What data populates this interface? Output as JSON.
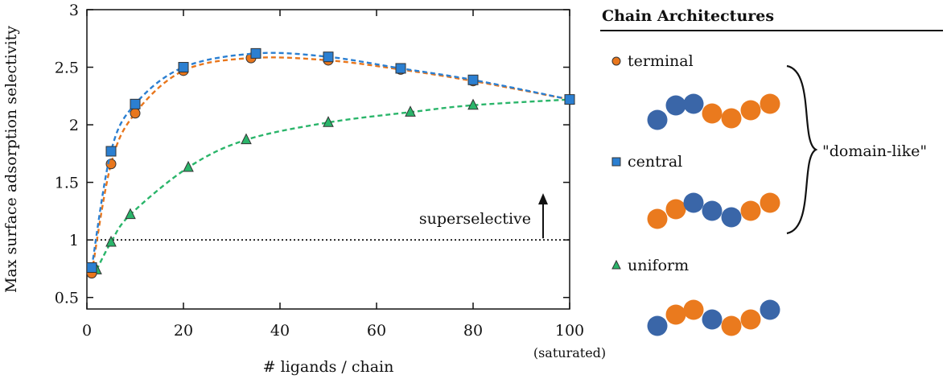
{
  "chart_data": {
    "type": "line",
    "title": "",
    "xlabel": "# ligands / chain",
    "ylabel": "Max surface adsorption selectivity",
    "xlim": [
      0,
      100
    ],
    "ylim": [
      0.4,
      3.0
    ],
    "xticks": [
      "0",
      "20",
      "40",
      "60",
      "80",
      "100"
    ],
    "yticks": [
      "0.5",
      "1",
      "1.5",
      "2",
      "2.5",
      "3"
    ],
    "x_end_note": "(saturated)",
    "threshold": {
      "y": 1,
      "label": "superselective"
    },
    "grid": false,
    "series": [
      {
        "name": "terminal",
        "color": "#e8761c",
        "marker": "circle",
        "line": "dashed",
        "x": [
          1,
          5,
          10,
          20,
          34,
          50,
          65,
          80,
          100
        ],
        "y": [
          0.71,
          1.66,
          2.1,
          2.47,
          2.58,
          2.56,
          2.48,
          2.38,
          2.22
        ]
      },
      {
        "name": "central",
        "color": "#2b7fd1",
        "marker": "square",
        "line": "dashed",
        "x": [
          1,
          5,
          10,
          20,
          35,
          50,
          65,
          80,
          100
        ],
        "y": [
          0.76,
          1.77,
          2.18,
          2.5,
          2.62,
          2.59,
          2.49,
          2.39,
          2.22
        ]
      },
      {
        "name": "uniform",
        "color": "#2ab56a",
        "marker": "triangle",
        "line": "dashed",
        "x": [
          2,
          5,
          9,
          21,
          33,
          50,
          67,
          80,
          100
        ],
        "y": [
          0.74,
          0.98,
          1.22,
          1.63,
          1.87,
          2.02,
          2.11,
          2.17,
          2.22
        ]
      }
    ]
  },
  "panel": {
    "header": "Chain Architectures",
    "bracket_label": "\"domain-like\"",
    "colors": {
      "orange": "#ea7a1e",
      "blue": "#3a66a8"
    },
    "chains": [
      {
        "name": "terminal",
        "beads": [
          "blue",
          "blue",
          "blue",
          "orange",
          "orange",
          "orange",
          "orange"
        ]
      },
      {
        "name": "central",
        "beads": [
          "orange",
          "orange",
          "blue",
          "blue",
          "blue",
          "orange",
          "orange"
        ]
      },
      {
        "name": "uniform",
        "beads": [
          "blue",
          "orange",
          "orange",
          "blue",
          "orange",
          "orange",
          "blue"
        ]
      }
    ]
  }
}
